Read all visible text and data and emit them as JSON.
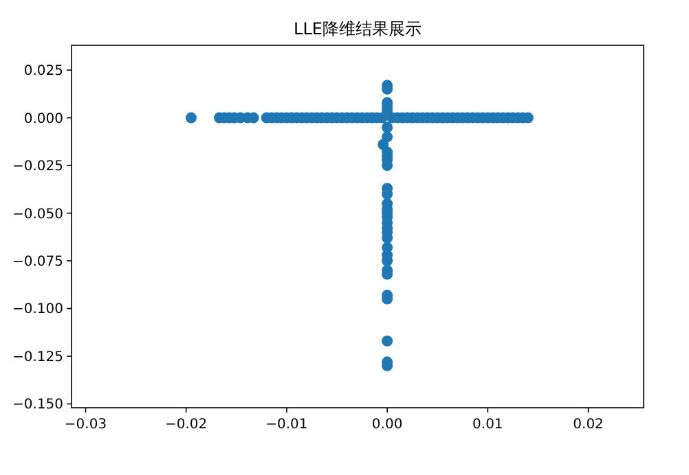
{
  "chart_data": {
    "type": "scatter",
    "title": "LLE降维结果展示",
    "marker": "circle",
    "grid": false,
    "xlim": [
      -0.0314,
      0.0255
    ],
    "ylim": [
      -0.152,
      0.038
    ],
    "xticks": [
      {
        "value": -0.03,
        "label": "−0.03"
      },
      {
        "value": -0.02,
        "label": "−0.02"
      },
      {
        "value": -0.01,
        "label": "−0.01"
      },
      {
        "value": 0,
        "label": "0.00"
      },
      {
        "value": 0.01,
        "label": "0.01"
      },
      {
        "value": 0.02,
        "label": "0.02"
      }
    ],
    "yticks": [
      {
        "value": 0.025,
        "label": "0.025"
      },
      {
        "value": 0,
        "label": "0.000"
      },
      {
        "value": -0.025,
        "label": "−0.025"
      },
      {
        "value": -0.05,
        "label": "−0.050"
      },
      {
        "value": -0.075,
        "label": "−0.075"
      },
      {
        "value": -0.1,
        "label": "−0.100"
      },
      {
        "value": -0.125,
        "label": "−0.125"
      },
      {
        "value": -0.15,
        "label": "−0.150"
      }
    ],
    "series": [
      {
        "color": "#1f77b4",
        "x": [
          -0.0195,
          -0.0167,
          -0.0162,
          -0.0157,
          -0.0152,
          -0.0146,
          -0.0139,
          -0.0133,
          -0.012,
          -0.0115,
          -0.011,
          -0.0105,
          -0.01,
          -0.0095,
          -0.009,
          -0.0085,
          -0.008,
          -0.0075,
          -0.007,
          -0.0065,
          -0.006,
          -0.0055,
          -0.005,
          -0.0045,
          -0.004,
          -0.0035,
          -0.003,
          -0.0025,
          -0.002,
          -0.0015,
          -0.001,
          -0.0005,
          0.0005,
          0.001,
          0.0015,
          0.002,
          0.0025,
          0.003,
          0.0035,
          0.004,
          0.0045,
          0.005,
          0.0055,
          0.006,
          0.0065,
          0.007,
          0.0075,
          0.008,
          0.0085,
          0.009,
          0.0095,
          0.01,
          0.0105,
          0.011,
          0.0115,
          0.012,
          0.0125,
          0.013,
          0.0135,
          0.014,
          0,
          0,
          0,
          0,
          0,
          0,
          0,
          -0.0004,
          0,
          0,
          0,
          0,
          0,
          0,
          0,
          0,
          0,
          0,
          0,
          0,
          0,
          0,
          0,
          0,
          0,
          0,
          0,
          0,
          0,
          0,
          0,
          0
        ],
        "values": [
          0,
          0,
          0,
          0,
          0,
          0,
          0,
          0,
          0,
          0,
          0,
          0,
          0,
          0,
          0,
          0,
          0,
          0,
          0,
          0,
          0,
          0,
          0,
          0,
          0,
          0,
          0,
          0,
          0,
          0,
          0,
          0,
          0,
          0,
          0,
          0,
          0,
          0,
          0,
          0,
          0,
          0,
          0,
          0,
          0,
          0,
          0,
          0,
          0,
          0,
          0,
          0,
          0,
          0,
          0,
          0,
          0,
          0,
          0,
          0,
          0.017,
          0.015,
          0.008,
          0.006,
          0.004,
          -0.005,
          -0.01,
          -0.014,
          -0.018,
          -0.02,
          -0.022,
          -0.025,
          -0.037,
          -0.04,
          -0.045,
          -0.048,
          -0.05,
          -0.052,
          -0.055,
          -0.058,
          -0.06,
          -0.063,
          -0.068,
          -0.072,
          -0.075,
          -0.08,
          -0.082,
          -0.093,
          -0.095,
          -0.117,
          -0.128,
          -0.13
        ]
      }
    ]
  }
}
